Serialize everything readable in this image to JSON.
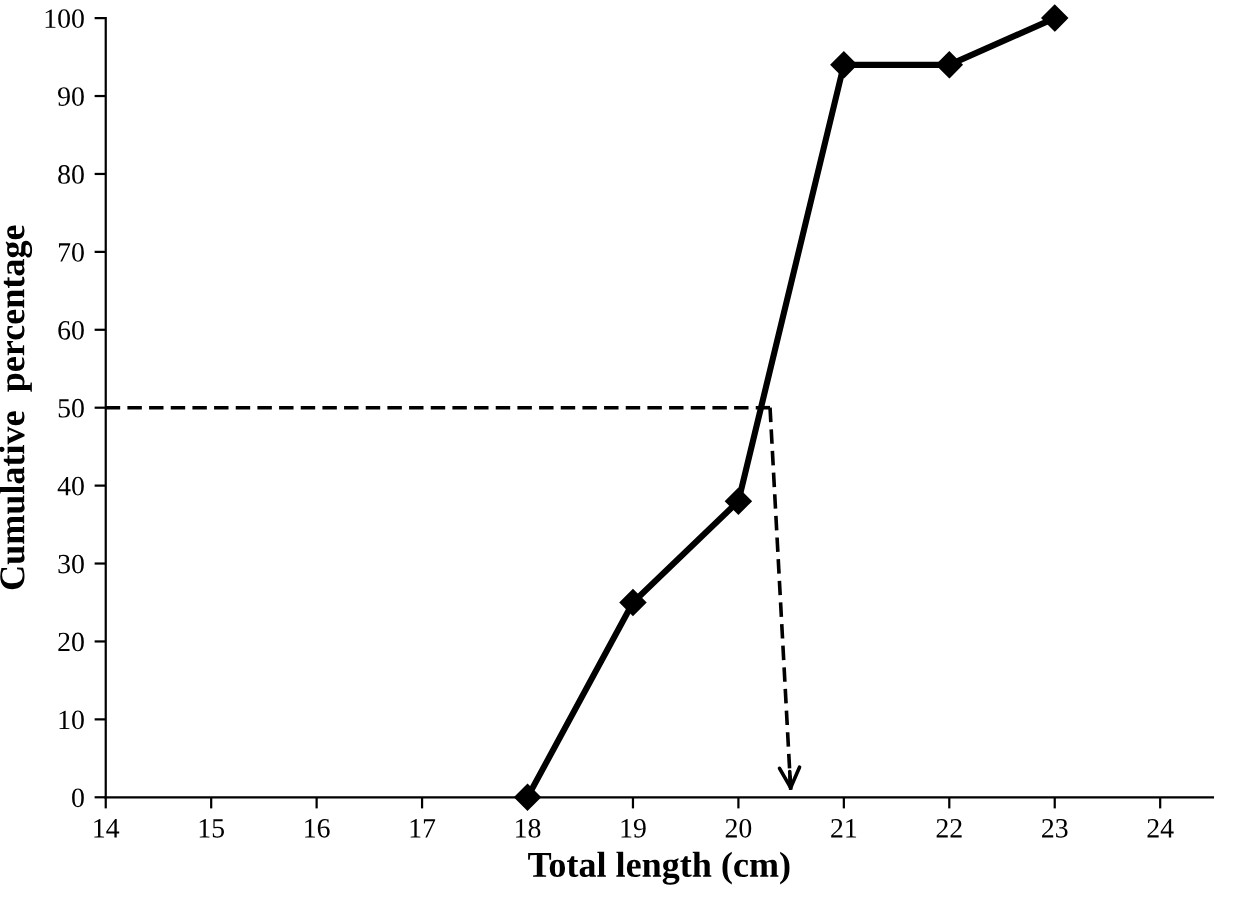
{
  "chart_data": {
    "type": "line",
    "xlabel": "Total length (cm)",
    "ylabel": "Cumulative  percentage",
    "x": [
      18,
      19,
      20,
      21,
      22,
      23
    ],
    "series": [
      {
        "color": "#000000",
        "values": [
          0,
          25,
          38,
          94,
          94,
          100
        ],
        "marker": "diamond",
        "line_style": "solid"
      },
      {
        "color": "#000000",
        "x": [
          14,
          20.3
        ],
        "values": [
          50,
          50
        ],
        "marker": "none",
        "line_style": "dashed"
      },
      {
        "color": "#000000",
        "x": [
          20.3,
          20.5
        ],
        "values": [
          50,
          0
        ],
        "marker": "none",
        "line_style": "dashed"
      }
    ],
    "xlim": [
      14,
      24.5
    ],
    "ylim": [
      0,
      100
    ],
    "xticks": [
      14,
      15,
      16,
      17,
      18,
      19,
      20,
      21,
      22,
      23,
      24
    ],
    "yticks": [
      0,
      10,
      20,
      30,
      40,
      50,
      60,
      70,
      80,
      90,
      100
    ],
    "grid": false,
    "legend": false
  }
}
